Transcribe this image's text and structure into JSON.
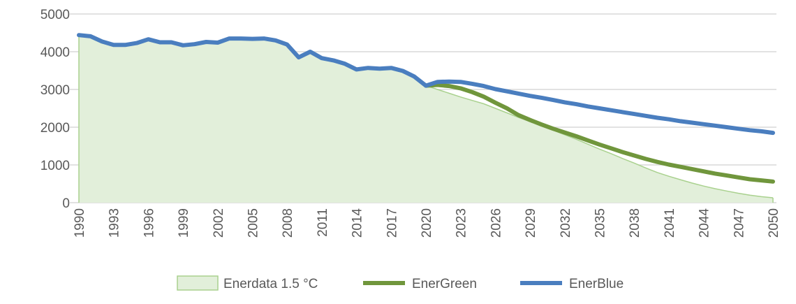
{
  "chart_data": {
    "type": "line",
    "title": "",
    "xlabel": "",
    "ylabel": "",
    "xlim": [
      1990,
      2050
    ],
    "ylim": [
      0,
      5000
    ],
    "y_ticks": [
      0,
      1000,
      2000,
      3000,
      4000,
      5000
    ],
    "x_ticks": [
      1990,
      1993,
      1996,
      1999,
      2002,
      2005,
      2008,
      2011,
      2014,
      2017,
      2020,
      2023,
      2026,
      2029,
      2032,
      2035,
      2038,
      2041,
      2044,
      2047,
      2050
    ],
    "grid": "horizontal",
    "legend_position": "bottom",
    "series": [
      {
        "name": "Enerdata 1.5 °C",
        "style": "area",
        "color": "#a9d18e",
        "fill": "#e2efda",
        "x_start": 1990,
        "values": [
          4440,
          4410,
          4270,
          4180,
          4180,
          4230,
          4330,
          4250,
          4250,
          4170,
          4200,
          4260,
          4240,
          4350,
          4350,
          4340,
          4350,
          4300,
          4190,
          3850,
          4000,
          3830,
          3770,
          3680,
          3530,
          3570,
          3550,
          3570,
          3490,
          3340,
          3100,
          3000,
          2900,
          2800,
          2710,
          2620,
          2500,
          2380,
          2260,
          2150,
          2040,
          1920,
          1800,
          1680,
          1550,
          1420,
          1300,
          1170,
          1050,
          920,
          800,
          700,
          610,
          520,
          440,
          370,
          310,
          250,
          200,
          160,
          130
        ]
      },
      {
        "name": "EnerGreen",
        "style": "line",
        "color": "#70963c",
        "x_start": 2020,
        "values": [
          3100,
          3120,
          3090,
          3030,
          2930,
          2810,
          2650,
          2500,
          2320,
          2190,
          2070,
          1960,
          1860,
          1760,
          1650,
          1540,
          1440,
          1340,
          1250,
          1160,
          1080,
          1010,
          950,
          890,
          830,
          770,
          720,
          670,
          620,
          590,
          560
        ]
      },
      {
        "name": "EnerBlue",
        "style": "line",
        "color": "#4a7ebf",
        "x_start": 1990,
        "values": [
          4440,
          4410,
          4270,
          4180,
          4180,
          4230,
          4330,
          4250,
          4250,
          4170,
          4200,
          4260,
          4240,
          4350,
          4350,
          4340,
          4350,
          4300,
          4190,
          3850,
          4000,
          3830,
          3770,
          3680,
          3530,
          3570,
          3550,
          3570,
          3490,
          3340,
          3100,
          3200,
          3210,
          3200,
          3150,
          3090,
          3010,
          2950,
          2890,
          2830,
          2780,
          2720,
          2660,
          2610,
          2550,
          2500,
          2450,
          2400,
          2350,
          2300,
          2250,
          2210,
          2160,
          2120,
          2080,
          2040,
          2000,
          1960,
          1920,
          1890,
          1850
        ]
      }
    ]
  }
}
